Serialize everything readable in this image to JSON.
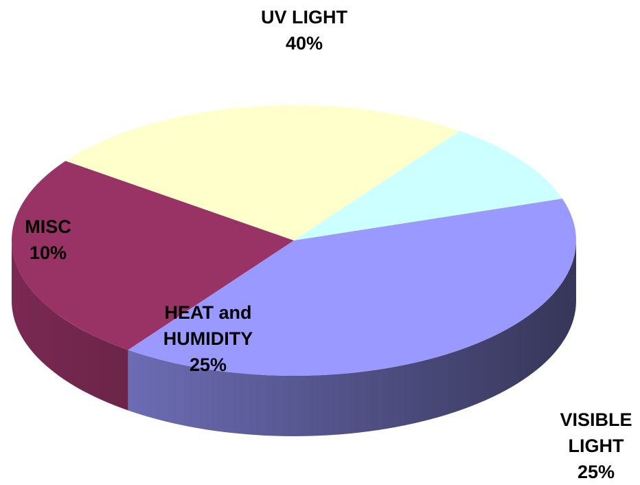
{
  "chart_data": {
    "type": "pie",
    "categories": [
      "UV LIGHT",
      "VISIBLE LIGHT",
      "HEAT and HUMIDITY",
      "MISC"
    ],
    "values": [
      40,
      25,
      25,
      10
    ],
    "value_labels": [
      "40%",
      "25%",
      "25%",
      "10%"
    ],
    "colors": [
      "#9999ff",
      "#993366",
      "#ffffcc",
      "#ccffff"
    ]
  }
}
